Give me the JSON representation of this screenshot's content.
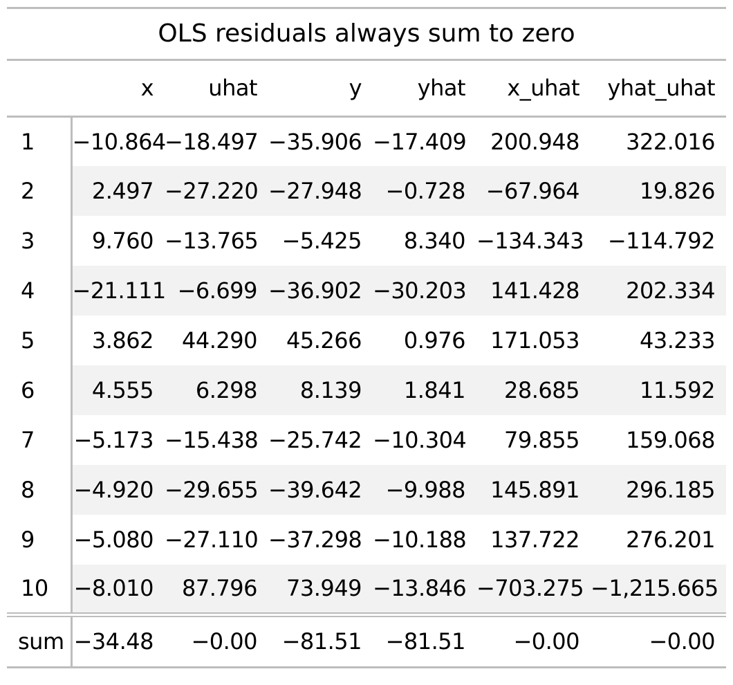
{
  "title": "OLS residuals always sum to zero",
  "columns": [
    "",
    "x",
    "uhat",
    "y",
    "yhat",
    "x_uhat",
    "yhat_uhat"
  ],
  "rows": [
    [
      "1",
      "−10.864",
      "−18.497",
      "−35.906",
      "−17.409",
      "200.948",
      "322.016"
    ],
    [
      "2",
      "2.497",
      "−27.220",
      "−27.948",
      "−0.728",
      "−67.964",
      "19.826"
    ],
    [
      "3",
      "9.760",
      "−13.765",
      "−5.425",
      "8.340",
      "−134.343",
      "−114.792"
    ],
    [
      "4",
      "−21.111",
      "−6.699",
      "−36.902",
      "−30.203",
      "141.428",
      "202.334"
    ],
    [
      "5",
      "3.862",
      "44.290",
      "45.266",
      "0.976",
      "171.053",
      "43.233"
    ],
    [
      "6",
      "4.555",
      "6.298",
      "8.139",
      "1.841",
      "28.685",
      "11.592"
    ],
    [
      "7",
      "−5.173",
      "−15.438",
      "−25.742",
      "−10.304",
      "79.855",
      "159.068"
    ],
    [
      "8",
      "−4.920",
      "−29.655",
      "−39.642",
      "−9.988",
      "145.891",
      "296.185"
    ],
    [
      "9",
      "−5.080",
      "−27.110",
      "−37.298",
      "−10.188",
      "137.722",
      "276.201"
    ],
    [
      "10",
      "−8.010",
      "87.796",
      "73.949",
      "−13.846",
      "−703.275",
      "−1,215.665"
    ]
  ],
  "sum_row": [
    "sum",
    "−34.48",
    "−0.00",
    "−81.51",
    "−81.51",
    "−0.00",
    "−0.00"
  ]
}
